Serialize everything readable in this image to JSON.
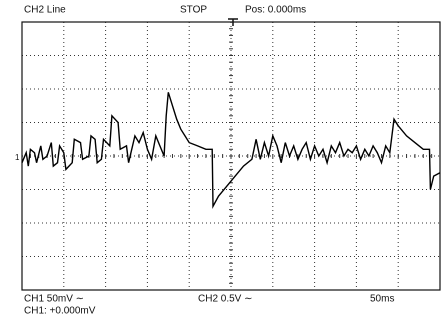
{
  "header": {
    "channel": "CH2 Line",
    "status": "STOP",
    "position": "Pos: 0.000ms"
  },
  "footer": {
    "ch1_scale": "CH1 50mV ∼",
    "ch2_scale": "CH2 0.5V ∼",
    "timebase": "50ms",
    "ch1_offset": "CH1: +0.000mV"
  },
  "ch1_marker": "1",
  "trace": {
    "x": [
      0,
      0.1,
      0.15,
      0.2,
      0.3,
      0.35,
      0.45,
      0.5,
      0.6,
      0.7,
      0.75,
      0.85,
      0.9,
      1.0,
      1.05,
      1.2,
      1.25,
      1.4,
      1.45,
      1.6,
      1.65,
      1.75,
      1.8,
      1.9,
      1.95,
      2.1,
      2.15,
      2.3,
      2.35,
      2.5,
      2.55,
      2.7,
      2.8,
      2.9,
      3.0,
      3.1,
      3.2,
      3.3,
      3.4,
      3.45,
      3.5,
      3.6,
      3.7,
      3.8,
      3.9,
      4.0,
      4.2,
      4.4,
      4.55,
      4.57,
      4.7,
      4.9,
      5.1,
      5.3,
      5.5,
      5.6,
      5.7,
      5.8,
      5.9,
      6.0,
      6.1,
      6.2,
      6.3,
      6.4,
      6.5,
      6.6,
      6.7,
      6.8,
      6.9,
      7.0,
      7.1,
      7.2,
      7.3,
      7.4,
      7.5,
      7.6,
      7.7,
      7.8,
      7.9,
      8.0,
      8.1,
      8.2,
      8.3,
      8.4,
      8.5,
      8.6,
      8.7,
      8.8,
      8.85,
      8.9,
      9.0,
      9.2,
      9.4,
      9.6,
      9.75,
      9.77,
      9.85,
      10
    ],
    "y": [
      -0.2,
      0.1,
      -0.3,
      0.2,
      0.1,
      -0.2,
      0.3,
      -0.1,
      0.0,
      0.4,
      -0.3,
      -0.2,
      0.3,
      0.1,
      -0.4,
      -0.2,
      0.5,
      0.4,
      -0.1,
      0.0,
      0.6,
      0.5,
      -0.2,
      -0.1,
      0.5,
      0.3,
      1.2,
      1.0,
      0.2,
      0.3,
      -0.2,
      0.6,
      0.4,
      0.7,
      0.2,
      -0.1,
      0.6,
      0.3,
      0.0,
      1.2,
      1.9,
      1.5,
      1.1,
      0.8,
      0.6,
      0.4,
      0.3,
      0.2,
      0.2,
      -1.5,
      -1.2,
      -0.9,
      -0.6,
      -0.3,
      -0.1,
      0.5,
      -0.1,
      0.4,
      0.0,
      0.6,
      0.3,
      -0.2,
      0.4,
      0.0,
      0.3,
      -0.1,
      0.2,
      0.4,
      -0.1,
      0.3,
      0.0,
      0.2,
      -0.2,
      0.3,
      0.1,
      0.4,
      0.0,
      0.2,
      0.1,
      0.3,
      -0.1,
      0.2,
      0.0,
      0.3,
      0.1,
      -0.2,
      0.3,
      0.1,
      0.6,
      1.1,
      0.9,
      0.6,
      0.4,
      0.2,
      0.2,
      -1.0,
      -0.6,
      -0.5
    ]
  }
}
